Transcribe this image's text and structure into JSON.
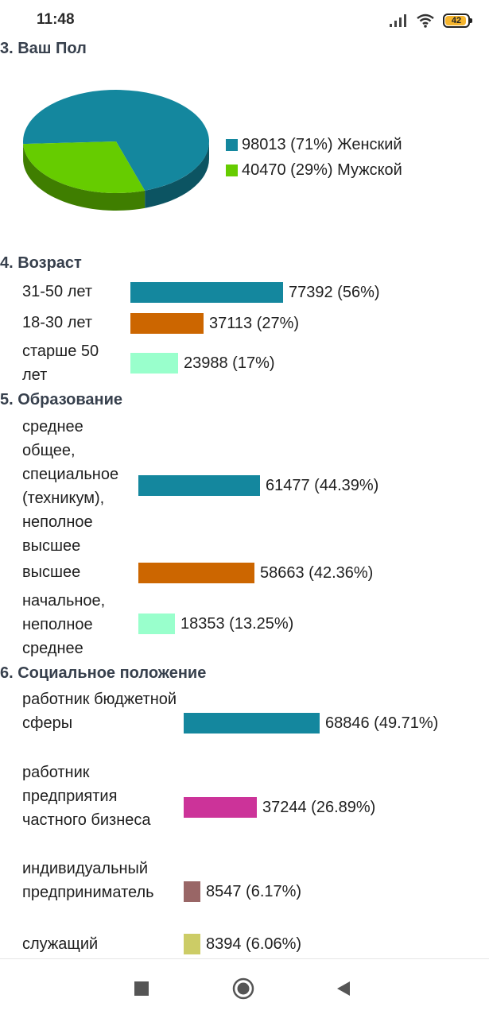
{
  "status_bar": {
    "time": "11:48",
    "battery": "42",
    "icons": [
      "signal-icon",
      "wifi-icon",
      "battery-icon"
    ]
  },
  "chart_data": [
    {
      "type": "pie",
      "title": "3. Ваш Пол",
      "slices": [
        {
          "label": "Женский",
          "value": 98013,
          "percent_label": "98013 (71%)",
          "color": "#14879e"
        },
        {
          "label": "Мужской",
          "value": 40470,
          "percent_label": "40470 (29%)",
          "color": "#66cc00"
        }
      ]
    },
    {
      "type": "bar",
      "title": "4. Возраст",
      "bars": [
        {
          "label": "31-50 лет",
          "value": 77392,
          "value_label": "77392 (56%)",
          "color": "#14879e"
        },
        {
          "label": "18-30 лет",
          "value": 37113,
          "value_label": "37113 (27%)",
          "color": "#cc6600"
        },
        {
          "label": "старше 50 лет",
          "value": 23988,
          "value_label": "23988 (17%)",
          "color": "#99ffcc"
        }
      ]
    },
    {
      "type": "bar",
      "title": "5. Образование",
      "bars": [
        {
          "label": "среднее общее, специальное (техникум), неполное высшее",
          "value": 61477,
          "value_label": "61477 (44.39%)",
          "color": "#14879e"
        },
        {
          "label": "высшее",
          "value": 58663,
          "value_label": "58663 (42.36%)",
          "color": "#cc6600"
        },
        {
          "label": "начальное, неполное среднее",
          "value": 18353,
          "value_label": "18353 (13.25%)",
          "color": "#99ffcc"
        }
      ]
    },
    {
      "type": "bar",
      "title": "6. Социальное положение",
      "bars": [
        {
          "label": "работник бюджетной сферы",
          "value": 68846,
          "value_label": "68846 (49.71%)",
          "color": "#14879e"
        },
        {
          "label": "работник предприятия частного бизнеса",
          "value": 37244,
          "value_label": "37244 (26.89%)",
          "color": "#cc3399"
        },
        {
          "label": "индивидуальный предприниматель",
          "value": 8547,
          "value_label": "8547 (6.17%)",
          "color": "#996666"
        },
        {
          "label": "служащий",
          "value": 8394,
          "value_label": "8394 (6.06%)",
          "color": "#cccc66"
        }
      ]
    }
  ],
  "nav_bar": {
    "icons": [
      "recents-square-icon",
      "home-circle-icon",
      "back-triangle-icon"
    ]
  }
}
